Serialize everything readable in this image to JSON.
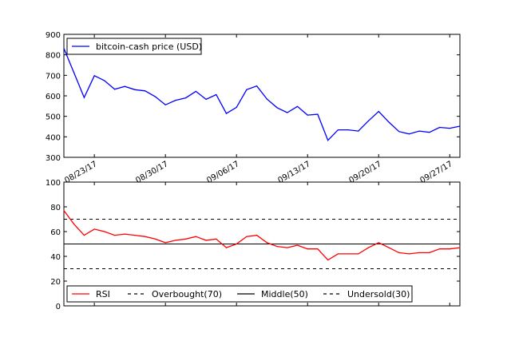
{
  "chart_data": [
    {
      "type": "line",
      "series": [
        {
          "name": "bitcoin-cash price (USD)",
          "color": "#0000ff",
          "values": [
            832,
            712,
            592,
            698,
            674,
            632,
            646,
            630,
            624,
            596,
            556,
            578,
            590,
            622,
            583,
            606,
            514,
            544,
            630,
            648,
            584,
            542,
            518,
            548,
            506,
            510,
            383,
            434,
            434,
            428,
            478,
            524,
            472,
            426,
            414,
            428,
            422,
            446,
            442,
            452
          ]
        }
      ],
      "ylim": [
        300,
        900
      ],
      "yticks": [
        "300",
        "400",
        "500",
        "600",
        "700",
        "800",
        "900"
      ],
      "xticks": [
        "08/23/17",
        "08/30/17",
        "09/06/17",
        "09/13/17",
        "09/20/17",
        "09/27/17"
      ],
      "legend": "top-left",
      "grid": false
    },
    {
      "type": "line",
      "series": [
        {
          "name": "RSI",
          "color": "#ff0000",
          "values": [
            77,
            66,
            57,
            62,
            60,
            57,
            58,
            57,
            56,
            54,
            51,
            53,
            54,
            56,
            53,
            54,
            47,
            50,
            56,
            57,
            51,
            48,
            47,
            49,
            46,
            46,
            37,
            42,
            42,
            42,
            47,
            51,
            47,
            43,
            42,
            43,
            43,
            46,
            46,
            47
          ]
        },
        {
          "name": "Overbought(70)",
          "color": "#000000",
          "style": "dashed",
          "value": 70
        },
        {
          "name": "Middle(50)",
          "color": "#000000",
          "style": "solid",
          "value": 50
        },
        {
          "name": "Undersold(30)",
          "color": "#000000",
          "style": "dashed",
          "value": 30
        }
      ],
      "ylim": [
        0,
        100
      ],
      "yticks": [
        "0",
        "20",
        "40",
        "60",
        "80",
        "100"
      ],
      "legend": "bottom",
      "grid": false
    }
  ]
}
